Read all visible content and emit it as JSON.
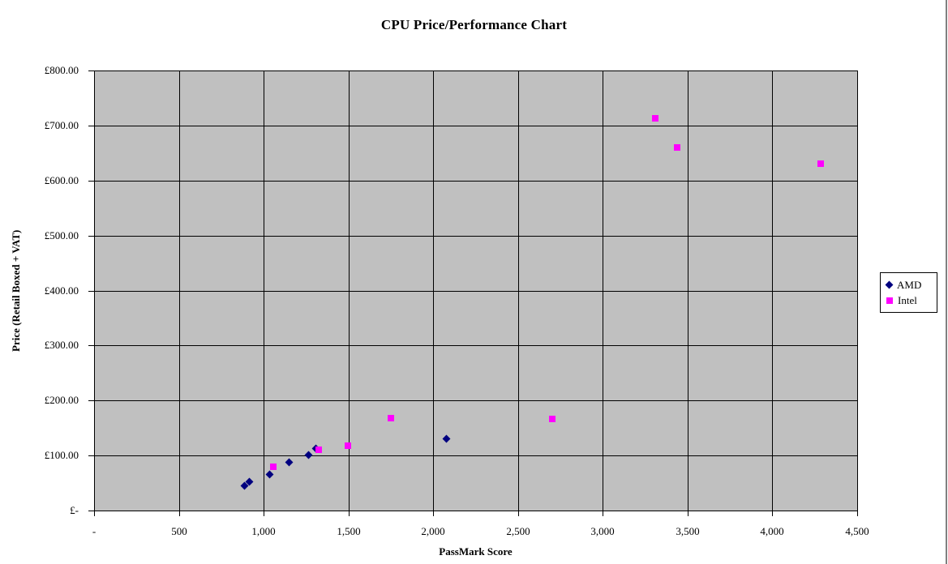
{
  "window": {
    "right_border_color": "#808080",
    "background_color": "#ffffff"
  },
  "chart_data": {
    "type": "scatter",
    "title": "CPU Price/Performance Chart",
    "xlabel": "PassMark Score",
    "ylabel": "Price (Retail Boxed + VAT)",
    "xlim": [
      0,
      4500
    ],
    "ylim": [
      0,
      800
    ],
    "x_ticks": [
      0,
      500,
      1000,
      1500,
      2000,
      2500,
      3000,
      3500,
      4000,
      4500
    ],
    "x_tick_labels": [
      "-",
      "500",
      "1,000",
      "1,500",
      "2,000",
      "2,500",
      "3,000",
      "3,500",
      "4,000",
      "4,500"
    ],
    "y_ticks": [
      0,
      100,
      200,
      300,
      400,
      500,
      600,
      700,
      800
    ],
    "y_tick_labels": [
      "£-",
      "£100.00",
      "£200.00",
      "£300.00",
      "£400.00",
      "£500.00",
      "£600.00",
      "£700.00",
      "£800.00"
    ],
    "grid": true,
    "grid_color": "#000000",
    "plot_bg": "#c0c0c0",
    "text_color": "#000000",
    "legend_position": "right",
    "legend_border_color": "#000000",
    "series": [
      {
        "name": "AMD",
        "marker": "diamond",
        "color": "#000080",
        "points": [
          [
            885,
            45
          ],
          [
            915,
            53
          ],
          [
            1035,
            65
          ],
          [
            1150,
            87
          ],
          [
            1265,
            101
          ],
          [
            1310,
            113
          ],
          [
            2080,
            131
          ]
        ]
      },
      {
        "name": "Intel",
        "marker": "square",
        "color": "#ff00ff",
        "points": [
          [
            1055,
            79
          ],
          [
            1325,
            110
          ],
          [
            1495,
            118
          ],
          [
            1750,
            168
          ],
          [
            2700,
            167
          ],
          [
            3310,
            713
          ],
          [
            3440,
            660
          ],
          [
            4285,
            631
          ]
        ]
      }
    ]
  }
}
